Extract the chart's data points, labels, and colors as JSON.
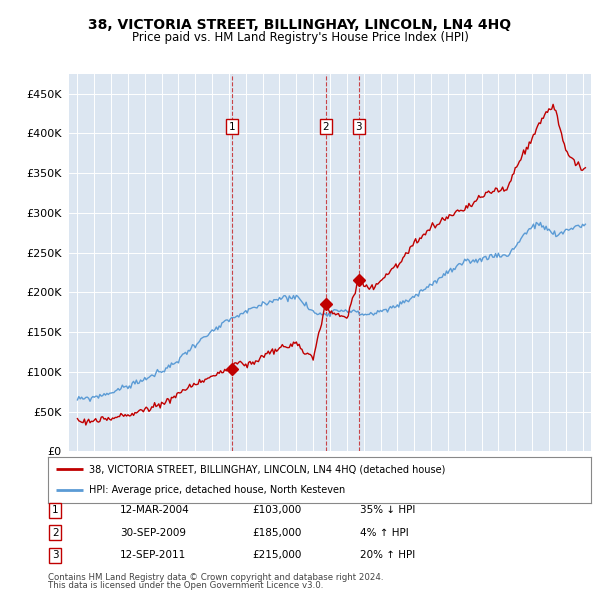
{
  "title": "38, VICTORIA STREET, BILLINGHAY, LINCOLN, LN4 4HQ",
  "subtitle": "Price paid vs. HM Land Registry's House Price Index (HPI)",
  "legend_line1": "38, VICTORIA STREET, BILLINGHAY, LINCOLN, LN4 4HQ (detached house)",
  "legend_line2": "HPI: Average price, detached house, North Kesteven",
  "footer1": "Contains HM Land Registry data © Crown copyright and database right 2024.",
  "footer2": "This data is licensed under the Open Government Licence v3.0.",
  "transactions": [
    {
      "num": 1,
      "date": "12-MAR-2004",
      "price": "£103,000",
      "change": "35% ↓ HPI",
      "year": 2004.2,
      "price_val": 103000
    },
    {
      "num": 2,
      "date": "30-SEP-2009",
      "price": "£185,000",
      "change": "4% ↑ HPI",
      "year": 2009.75,
      "price_val": 185000
    },
    {
      "num": 3,
      "date": "12-SEP-2011",
      "price": "£215,000",
      "change": "20% ↑ HPI",
      "year": 2011.7,
      "price_val": 215000
    }
  ],
  "hpi_color": "#5b9bd5",
  "price_color": "#c00000",
  "vline_color": "#c00000",
  "bg_color": "#dce6f1",
  "plot_bg": "#ffffff",
  "ylim": [
    0,
    475000
  ],
  "yticks": [
    0,
    50000,
    100000,
    150000,
    200000,
    250000,
    300000,
    350000,
    400000,
    450000
  ],
  "xlim": [
    1994.5,
    2025.5
  ],
  "xticks": [
    1995,
    1996,
    1997,
    1998,
    1999,
    2000,
    2001,
    2002,
    2003,
    2004,
    2005,
    2006,
    2007,
    2008,
    2009,
    2010,
    2011,
    2012,
    2013,
    2014,
    2015,
    2016,
    2017,
    2018,
    2019,
    2020,
    2021,
    2022,
    2023,
    2024,
    2025
  ]
}
